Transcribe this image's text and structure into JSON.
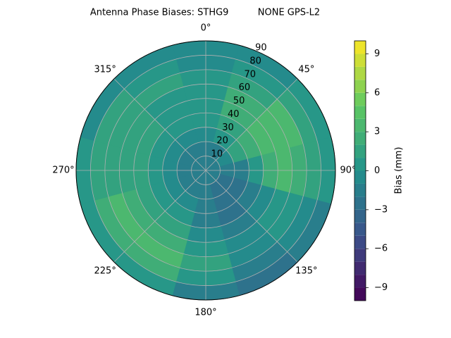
{
  "chart_data": {
    "type": "polar-contour",
    "title": "Antenna Phase Biases: STHG9          NONE GPS-L2",
    "colorbar_label": "Bias (mm)",
    "colormap": "viridis",
    "theta": [
      0,
      30,
      60,
      90,
      120,
      150,
      180,
      210,
      240,
      270,
      300,
      330
    ],
    "r": [
      5,
      15,
      25,
      35,
      45,
      55,
      65,
      75,
      85
    ],
    "values": [
      [
        -2,
        -2,
        -2,
        -2,
        -2,
        -2,
        -2,
        -2,
        -2,
        -2,
        -2,
        -2
      ],
      [
        -2,
        -2,
        -1,
        -2,
        -3,
        -3,
        -2,
        -2,
        -2,
        -2,
        -2,
        -2
      ],
      [
        -1,
        0,
        1,
        -2,
        -3,
        -3,
        -2,
        -1,
        -1,
        -1,
        -1,
        -1
      ],
      [
        0,
        1,
        2,
        0,
        -2,
        -3,
        -2,
        0,
        0,
        0,
        0,
        0
      ],
      [
        0,
        2,
        3,
        2,
        -1,
        -2,
        -1,
        1,
        1,
        1,
        1,
        0
      ],
      [
        0,
        2,
        3,
        3,
        0,
        -1,
        0,
        2,
        2,
        1,
        1,
        0
      ],
      [
        0,
        1,
        3,
        2,
        0,
        -1,
        1,
        3,
        3,
        1,
        1,
        1
      ],
      [
        -1,
        0,
        1,
        1,
        -1,
        -2,
        0,
        2,
        2,
        1,
        1,
        0
      ],
      [
        -1,
        -1,
        0,
        0,
        -2,
        -3,
        -2,
        0,
        0,
        0,
        -1,
        -1
      ]
    ],
    "rlim": [
      0,
      90
    ],
    "rticks": [
      10,
      20,
      30,
      40,
      50,
      60,
      70,
      80,
      90
    ],
    "thetaticks": [
      {
        "value": 0,
        "label": "0°"
      },
      {
        "value": 45,
        "label": "45°"
      },
      {
        "value": 90,
        "label": "90°"
      },
      {
        "value": 135,
        "label": "135°"
      },
      {
        "value": 180,
        "label": "180°"
      },
      {
        "value": 225,
        "label": "225°"
      },
      {
        "value": 270,
        "label": "270°"
      },
      {
        "value": 315,
        "label": "315°"
      }
    ],
    "levels": [
      -10,
      -9,
      -8,
      -7,
      -6,
      -5,
      -4,
      -3,
      -2,
      -1,
      0,
      1,
      2,
      3,
      4,
      5,
      6,
      7,
      8,
      9,
      10
    ],
    "clim": [
      -10,
      10
    ],
    "cticks": [
      {
        "value": -9,
        "label": "−9"
      },
      {
        "value": -6,
        "label": "−6"
      },
      {
        "value": -3,
        "label": "−3"
      },
      0,
      3,
      6,
      9
    ],
    "grid": true
  }
}
